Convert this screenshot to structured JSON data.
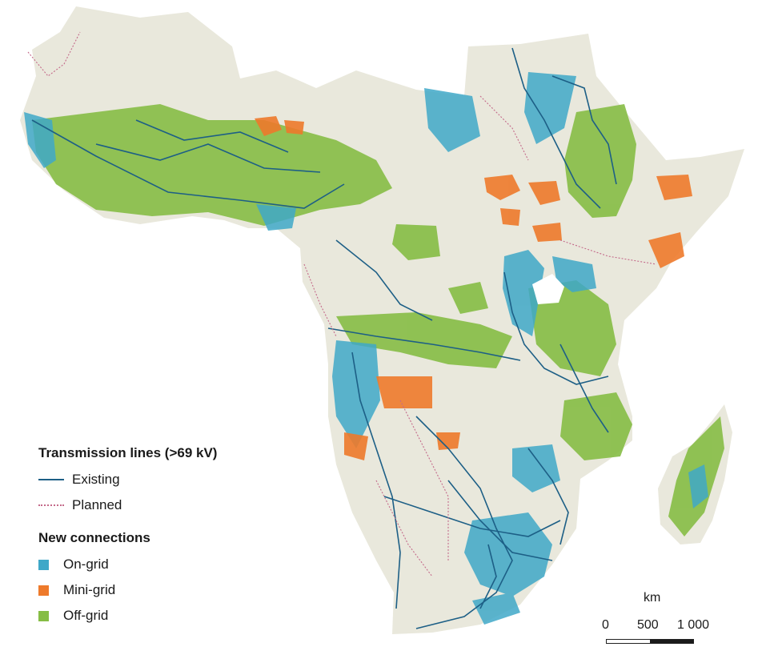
{
  "colors": {
    "land": "#e9e8dc",
    "on_grid": "#3fa8c8",
    "mini_grid": "#ee7a2b",
    "off_grid": "#86bd45",
    "existing_line": "#1d5f86",
    "planned_line": "#c46a8a"
  },
  "legend": {
    "transmission_title": "Transmission lines (>69 kV)",
    "existing_label": "Existing",
    "planned_label": "Planned",
    "connections_title": "New connections",
    "on_grid_label": "On-grid",
    "mini_grid_label": "Mini-grid",
    "off_grid_label": "Off-grid"
  },
  "scale_bar": {
    "unit": "km",
    "ticks": [
      "0",
      "500",
      "1 000"
    ]
  }
}
